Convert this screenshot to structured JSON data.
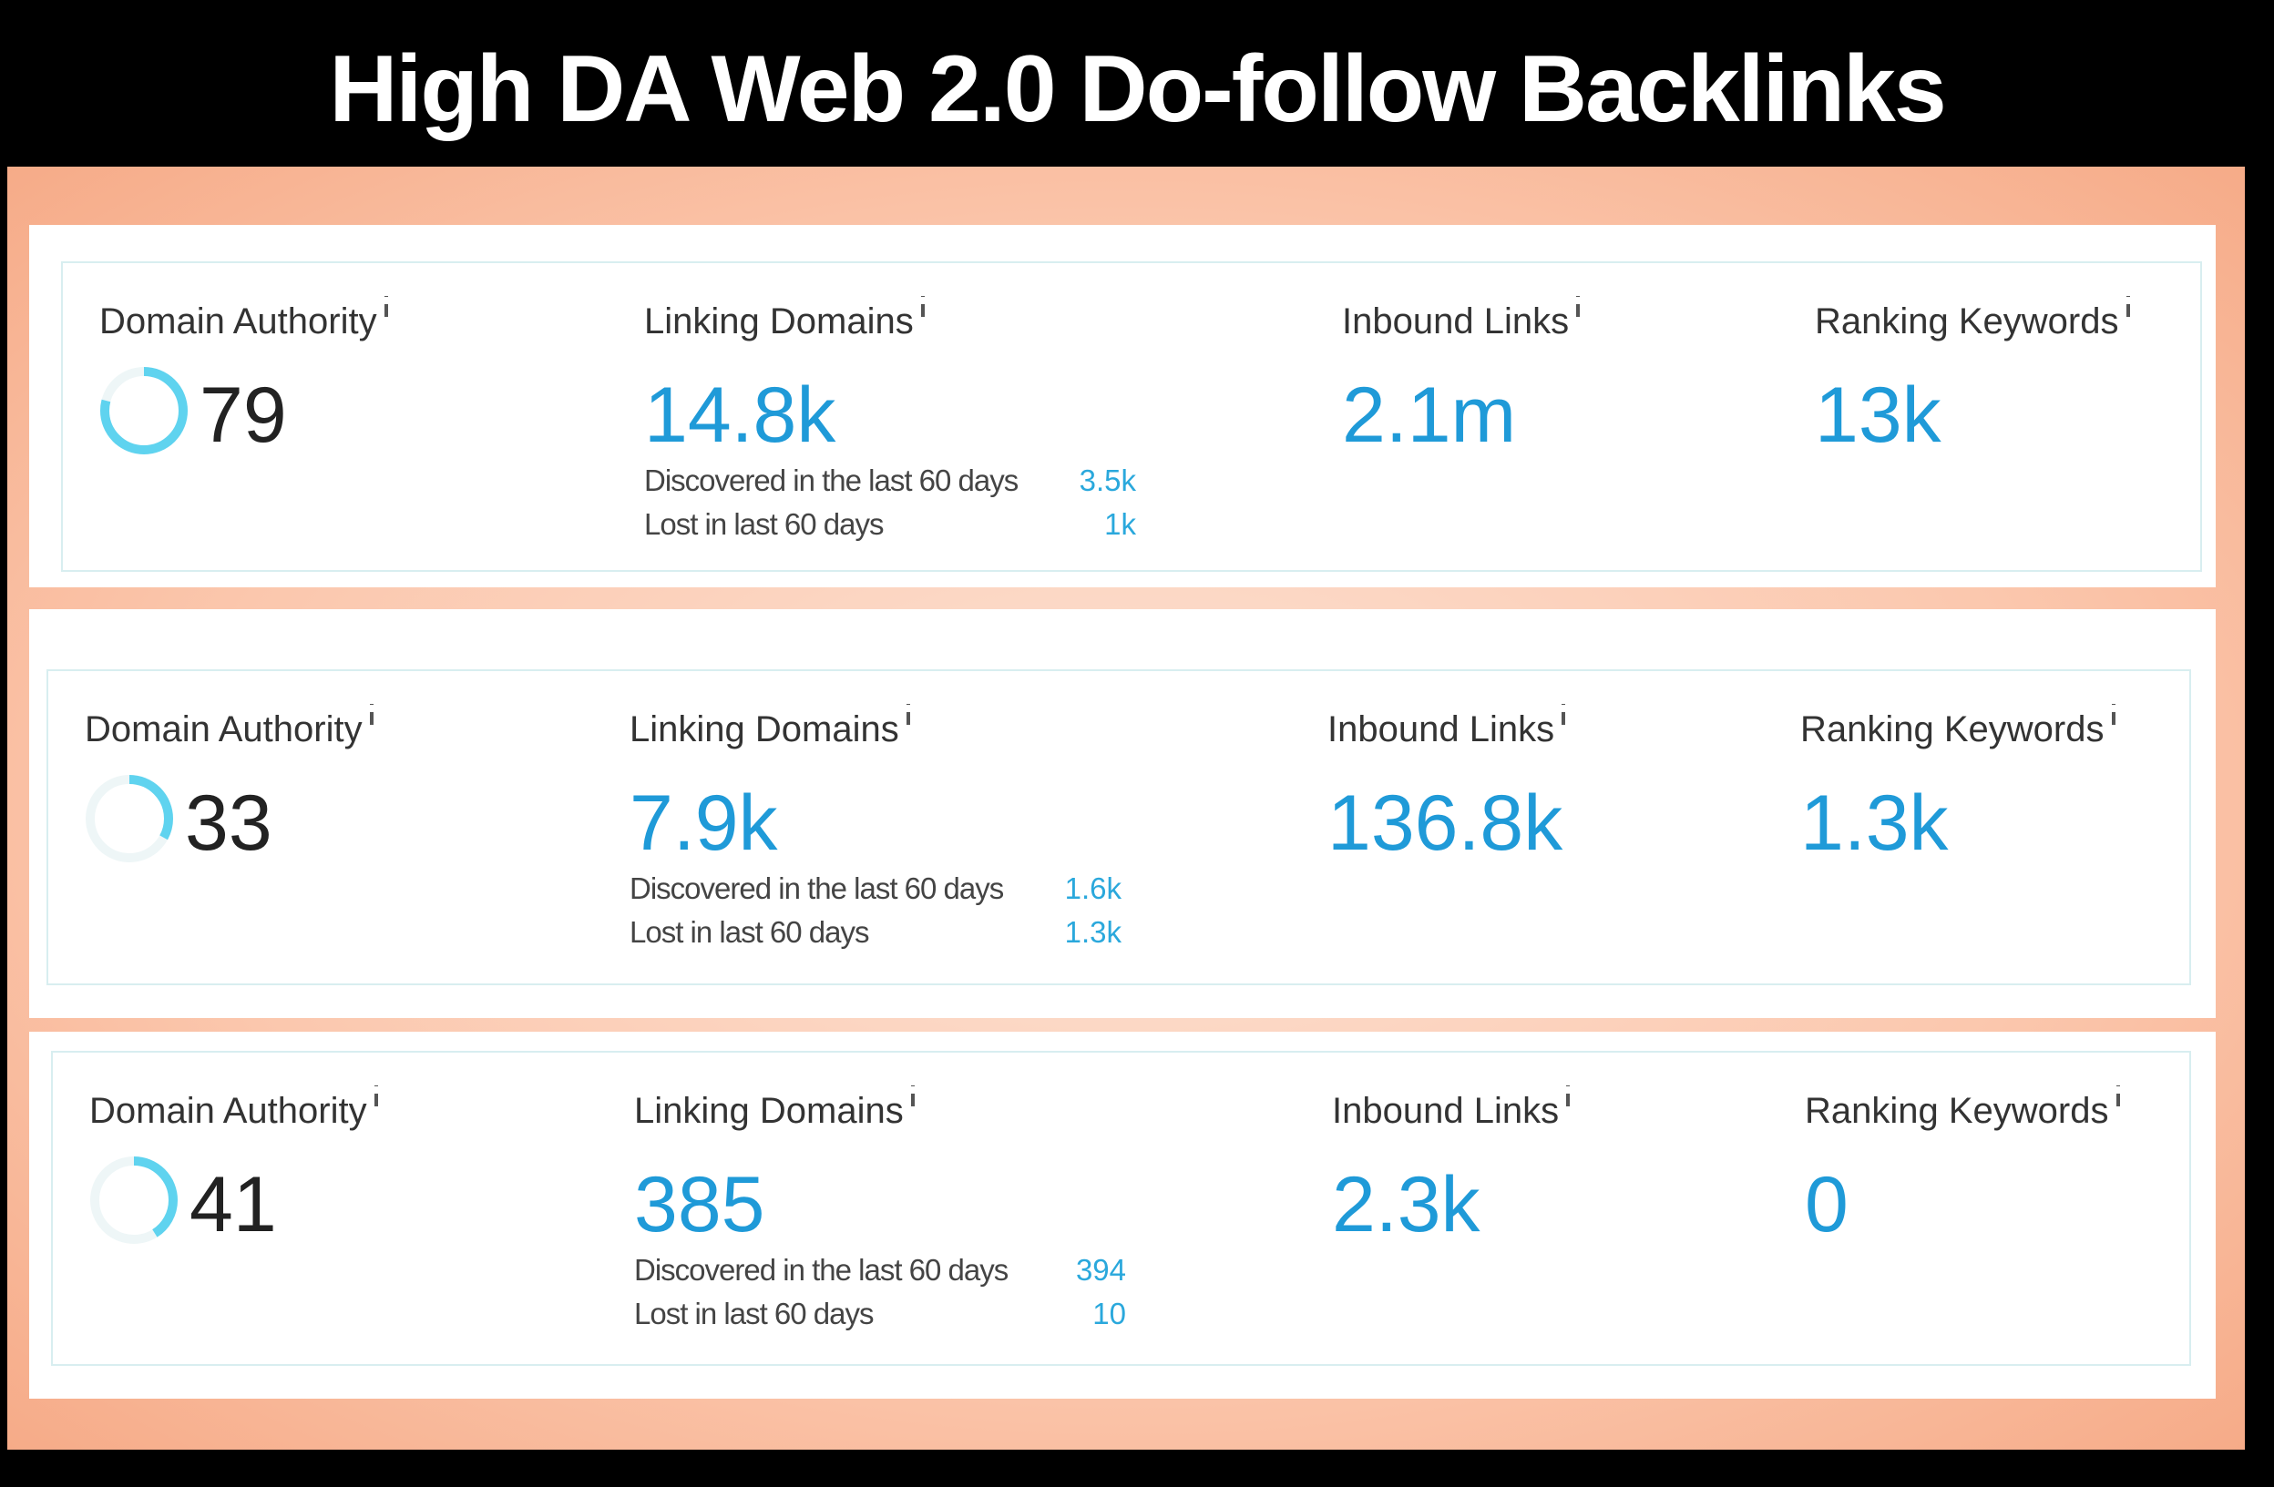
{
  "header": {
    "title": "High DA Web 2.0 Do-follow Backlinks"
  },
  "panels": [
    {
      "domain_authority": {
        "label": "Domain Authority",
        "value": 79
      },
      "linking_domains": {
        "label": "Linking Domains",
        "value": "14.8k",
        "discovered_label": "Discovered in the last 60 days",
        "discovered": "3.5k",
        "lost_label": "Lost in last 60 days",
        "lost": "1k"
      },
      "inbound_links": {
        "label": "Inbound Links",
        "value": "2.1m"
      },
      "ranking_keywords": {
        "label": "Ranking Keywords",
        "value": "13k"
      }
    },
    {
      "domain_authority": {
        "label": "Domain Authority",
        "value": 33
      },
      "linking_domains": {
        "label": "Linking Domains",
        "value": "7.9k",
        "discovered_label": "Discovered in the last 60 days",
        "discovered": "1.6k",
        "lost_label": "Lost in last 60 days",
        "lost": "1.3k"
      },
      "inbound_links": {
        "label": "Inbound Links",
        "value": "136.8k"
      },
      "ranking_keywords": {
        "label": "Ranking Keywords",
        "value": "1.3k"
      }
    },
    {
      "domain_authority": {
        "label": "Domain Authority",
        "value": 41
      },
      "linking_domains": {
        "label": "Linking Domains",
        "value": "385",
        "discovered_label": "Discovered in the last 60 days",
        "discovered": "394",
        "lost_label": "Lost in last 60 days",
        "lost": "10"
      },
      "inbound_links": {
        "label": "Inbound Links",
        "value": "2.3k"
      },
      "ranking_keywords": {
        "label": "Ranking Keywords",
        "value": "0"
      }
    }
  ]
}
